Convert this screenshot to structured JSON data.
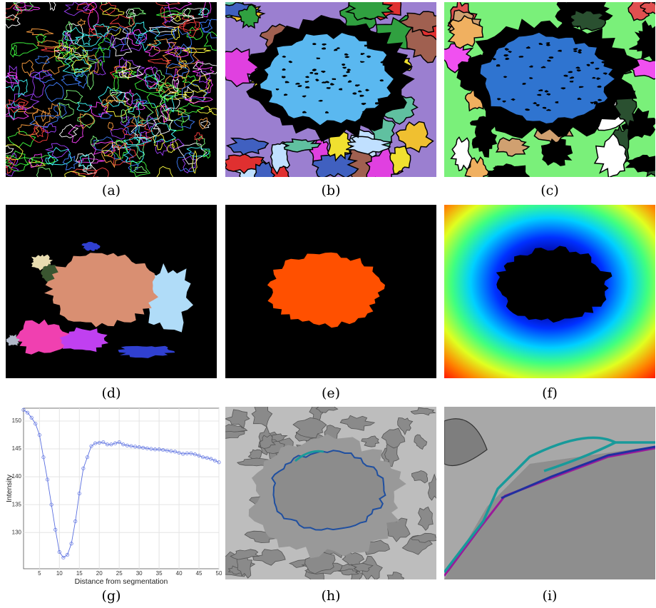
{
  "panels": [
    {
      "label": "(a)"
    },
    {
      "label": "(b)"
    },
    {
      "label": "(c)"
    },
    {
      "label": "(d)"
    },
    {
      "label": "(e)"
    },
    {
      "label": "(f)"
    },
    {
      "label": "(g)"
    },
    {
      "label": "(h)"
    },
    {
      "label": "(i)"
    }
  ],
  "chart_data": {
    "type": "line",
    "x_label": "Distance from segmentation",
    "y_label": "Intensity",
    "x": [
      1,
      2,
      3,
      4,
      5,
      6,
      7,
      8,
      9,
      10,
      11,
      12,
      13,
      14,
      15,
      16,
      17,
      18,
      19,
      20,
      21,
      22,
      23,
      24,
      25,
      26,
      27,
      28,
      29,
      30,
      31,
      32,
      33,
      34,
      35,
      36,
      37,
      38,
      39,
      40,
      41,
      42,
      43,
      44,
      45,
      46,
      47,
      48,
      49,
      50
    ],
    "series": [
      {
        "color": "#5a6fe0",
        "values": [
          152,
          151.5,
          150.6,
          149.5,
          147.5,
          143.5,
          139.5,
          135,
          130.5,
          126.5,
          125.5,
          126,
          128,
          132,
          137,
          141.5,
          143.5,
          145.5,
          146,
          146.1,
          146.2,
          145.8,
          145.8,
          146,
          146.2,
          145.8,
          145.6,
          145.5,
          145.4,
          145.3,
          145.2,
          145.1,
          145,
          144.9,
          144.9,
          144.8,
          144.7,
          144.6,
          144.5,
          144.3,
          144.1,
          144.2,
          144.2,
          144,
          143.8,
          143.5,
          143.4,
          143.2,
          142.9,
          142.6
        ]
      }
    ],
    "xlim": [
      1,
      50
    ],
    "ylim": [
      123.5,
      152.3
    ],
    "xticks": [
      5,
      10,
      15,
      20,
      25,
      30,
      35,
      40,
      45,
      50
    ],
    "yticks": [
      130,
      135,
      140,
      145,
      150
    ],
    "grid": true
  }
}
